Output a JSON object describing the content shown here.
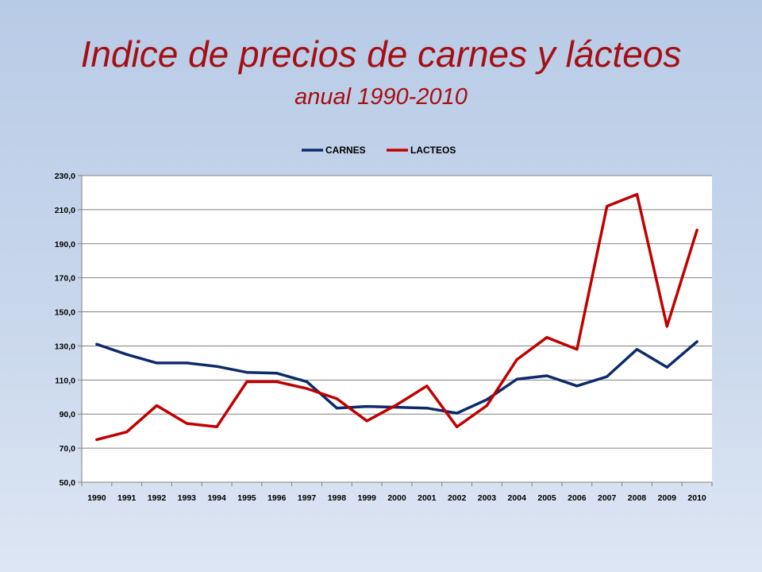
{
  "slide": {
    "title": "Indice de precios de carnes y lácteos",
    "subtitle": "anual 1990-2010"
  },
  "colors": {
    "title": "#a50f14",
    "carnes": "#0d2a6b",
    "lacteos": "#c00000",
    "grid": "#808080",
    "plot_bg": "#ffffff"
  },
  "chart_data": {
    "type": "line",
    "title": "",
    "xlabel": "",
    "ylabel": "",
    "categories": [
      "1990",
      "1991",
      "1992",
      "1993",
      "1994",
      "1995",
      "1996",
      "1997",
      "1998",
      "1999",
      "2000",
      "2001",
      "2002",
      "2003",
      "2004",
      "2005",
      "2006",
      "2007",
      "2008",
      "2009",
      "2010"
    ],
    "series": [
      {
        "name": "CARNES",
        "color": "#0d2a6b",
        "values": [
          131.0,
          125.0,
          120.0,
          120.0,
          118.0,
          114.5,
          114.0,
          109.0,
          93.5,
          94.5,
          94.0,
          93.5,
          90.5,
          98.5,
          110.5,
          112.5,
          106.5,
          112.0,
          128.0,
          117.5,
          132.5
        ]
      },
      {
        "name": "LACTEOS",
        "color": "#c00000",
        "values": [
          75.0,
          79.5,
          95.0,
          84.5,
          82.5,
          109.0,
          109.0,
          105.0,
          99.0,
          86.0,
          95.5,
          106.5,
          82.5,
          95.0,
          122.0,
          135.0,
          128.0,
          212.0,
          219.0,
          141.5,
          198.0
        ]
      }
    ],
    "ylim": [
      50,
      230
    ],
    "yticks": [
      "50,0",
      "70,0",
      "90,0",
      "110,0",
      "130,0",
      "150,0",
      "170,0",
      "190,0",
      "210,0",
      "230,0"
    ],
    "ytick_values": [
      50,
      70,
      90,
      110,
      130,
      150,
      170,
      190,
      210,
      230
    ],
    "grid": true,
    "legend_position": "top-center"
  }
}
